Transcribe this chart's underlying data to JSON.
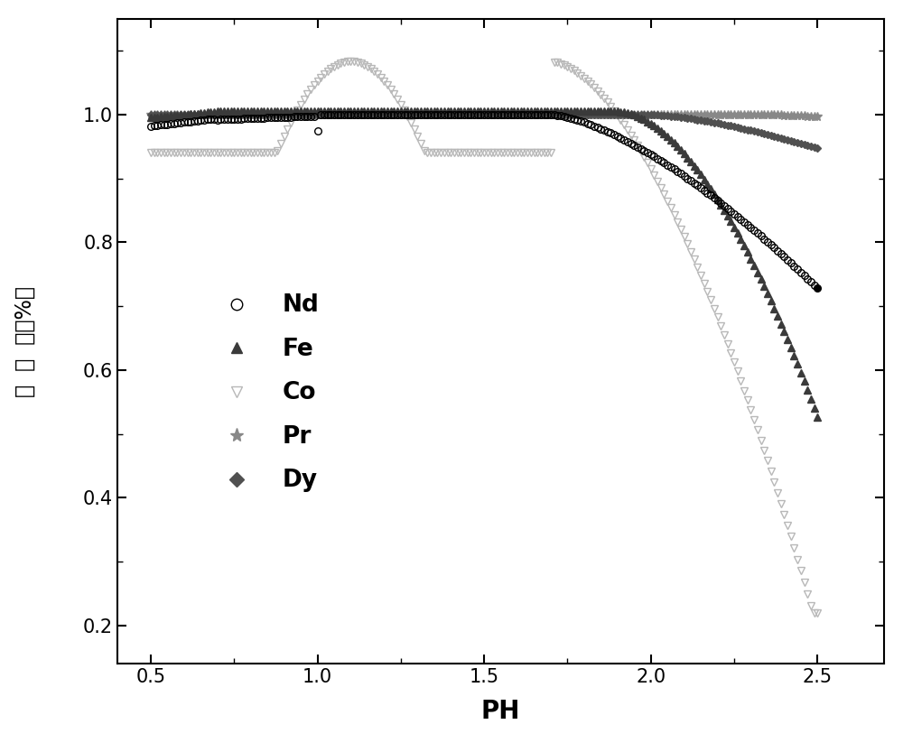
{
  "xlim": [
    0.4,
    2.7
  ],
  "ylim": [
    0.14,
    1.15
  ],
  "xlabel": "PH",
  "xticks": [
    0.5,
    1.0,
    1.5,
    2.0,
    2.5
  ],
  "yticks": [
    0.2,
    0.4,
    0.6,
    0.8,
    1.0
  ],
  "background_color": "#ffffff",
  "Nd_color": "#000000",
  "Fe_color": "#3a3a3a",
  "Co_color": "#b8b8b8",
  "Pr_color": "#888888",
  "Dy_color": "#505050"
}
